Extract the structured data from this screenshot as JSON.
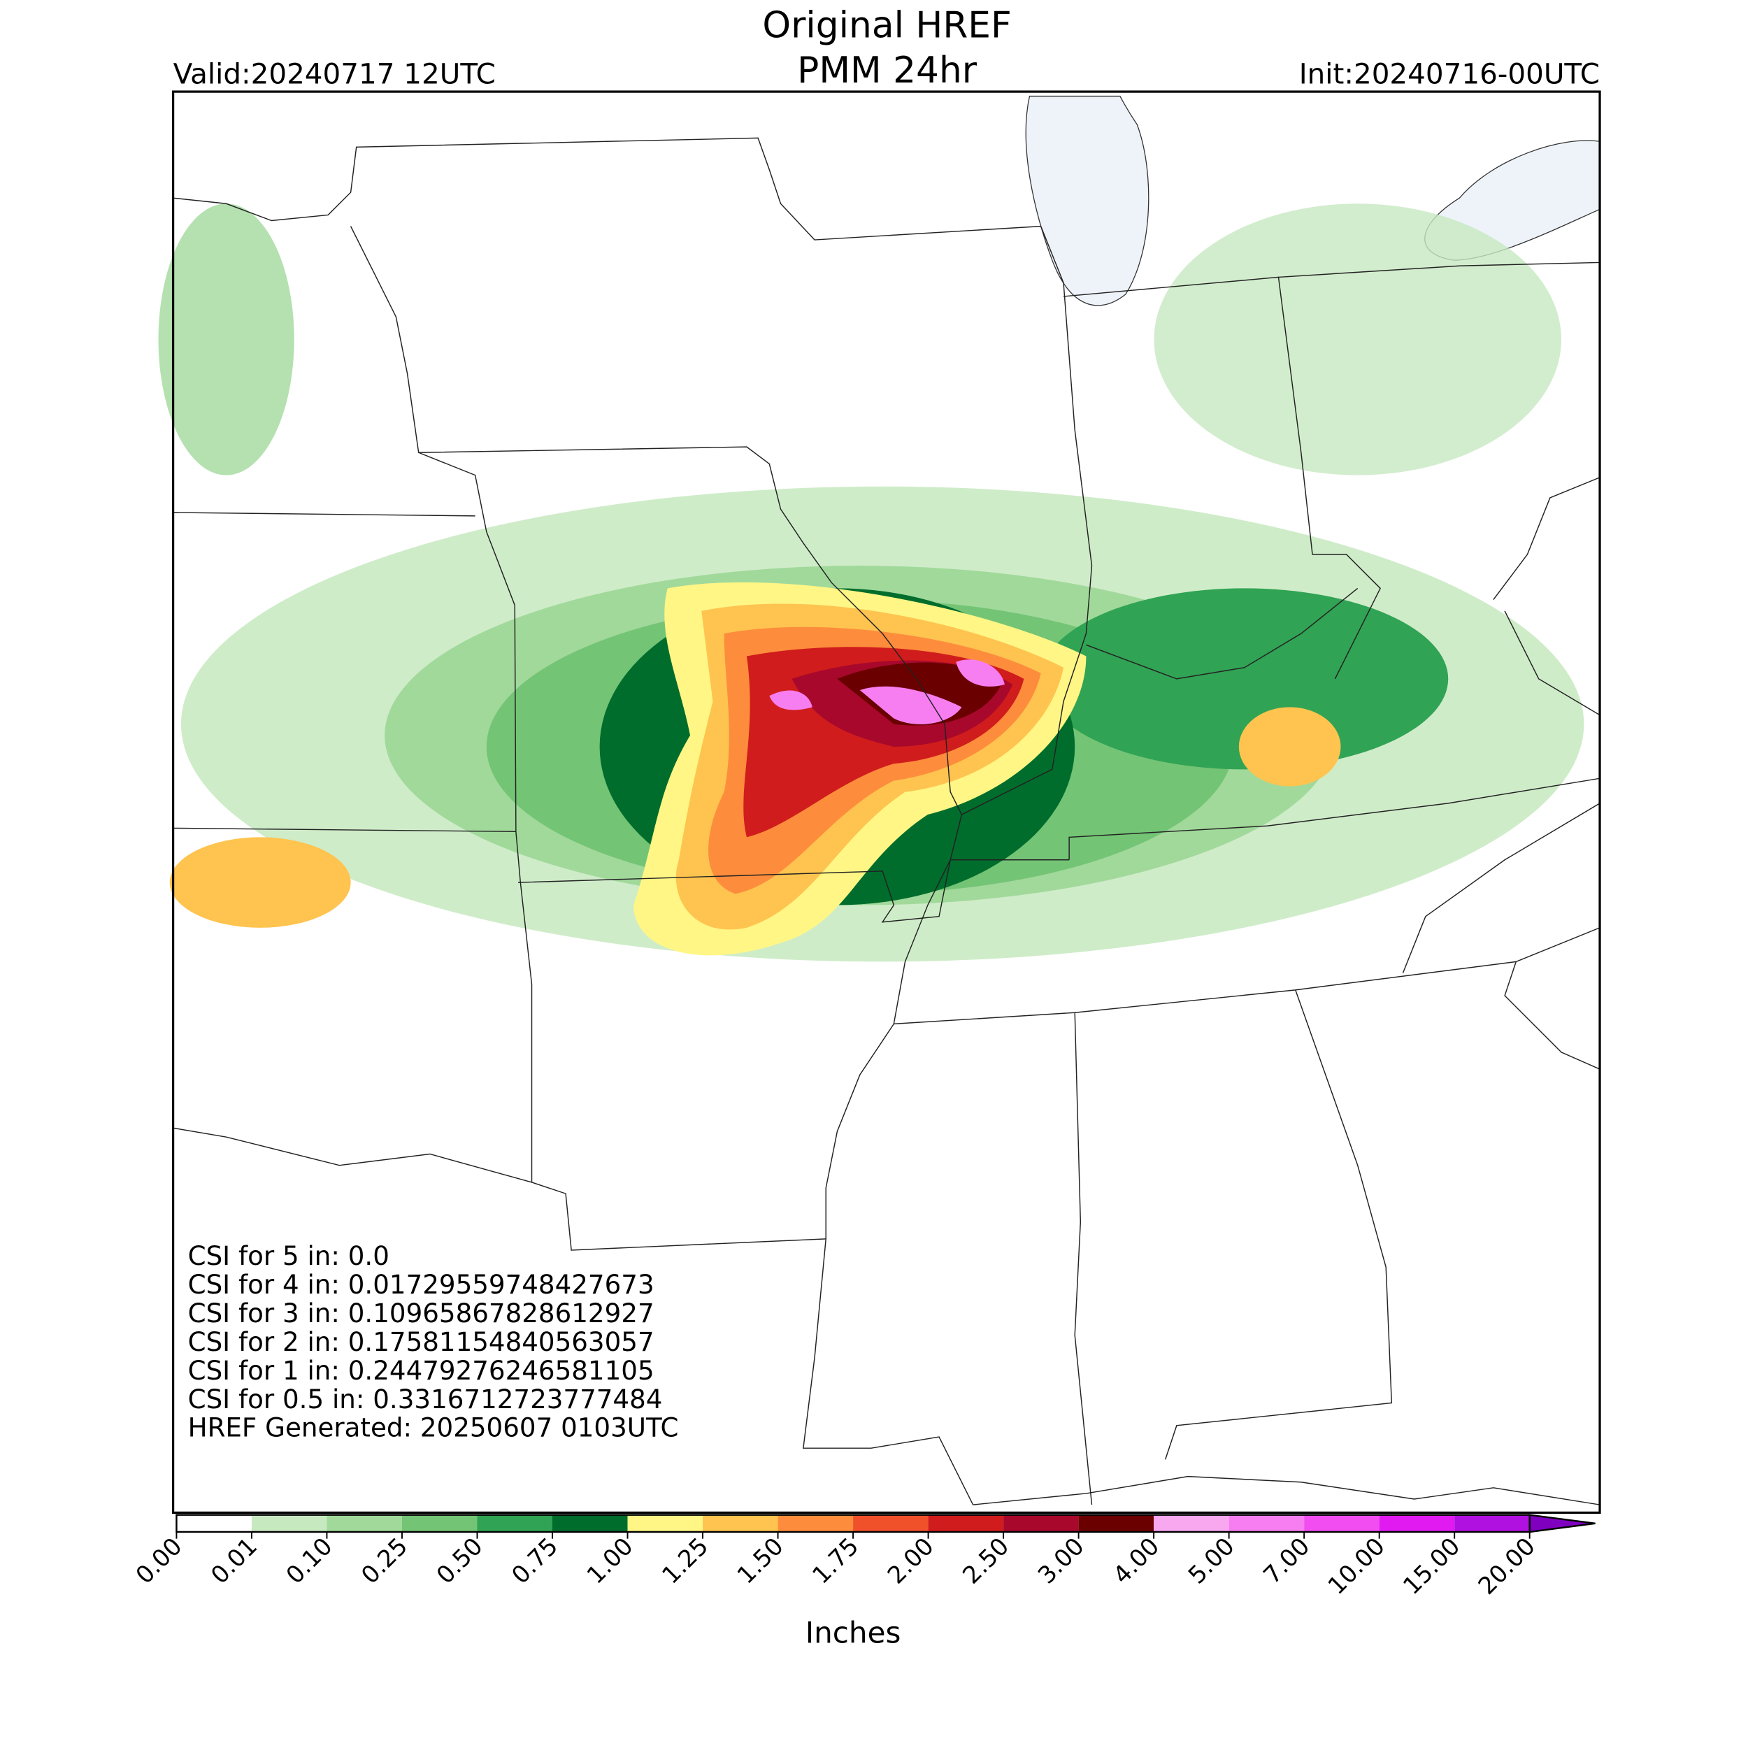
{
  "title": "Original HREF",
  "subtitle": "PMM 24hr",
  "valid": "Valid:20240717 12UTC",
  "init": "Init:20240716-00UTC",
  "stats": [
    "CSI for 5 in: 0.0",
    "CSI for 4 in: 0.01729559748427673",
    "CSI for 3 in: 0.10965867828612927",
    "CSI for 2 in: 0.17581154840563057",
    "CSI for 1 in: 0.24479276246581105",
    "CSI for 0.5 in: 0.3316712723777484",
    "HREF Generated: 20250607 0103UTC"
  ],
  "colorbar": {
    "label": "Inches",
    "ticks": [
      {
        "value": 0,
        "label": "0.00"
      },
      {
        "value": 0.01,
        "label": "0.01"
      },
      {
        "value": 0.1,
        "label": "0.10"
      },
      {
        "value": 0.25,
        "label": "0.25"
      },
      {
        "value": 0.5,
        "label": "0.50"
      },
      {
        "value": 0.75,
        "label": "0.75"
      },
      {
        "value": 1,
        "label": "1.00"
      },
      {
        "value": 1.25,
        "label": "1.25"
      },
      {
        "value": 1.5,
        "label": "1.50"
      },
      {
        "value": 1.75,
        "label": "1.75"
      },
      {
        "value": 2,
        "label": "2.00"
      },
      {
        "value": 2.5,
        "label": "2.50"
      },
      {
        "value": 3,
        "label": "3.00"
      },
      {
        "value": 4,
        "label": "4.00"
      },
      {
        "value": 5,
        "label": "5.00"
      },
      {
        "value": 7,
        "label": "7.00"
      },
      {
        "value": 10,
        "label": "10.00"
      },
      {
        "value": 15,
        "label": "15.00"
      },
      {
        "value": 20,
        "label": "20.00"
      }
    ],
    "colors": [
      "#ffffff",
      "#c7e9c0",
      "#a1d99b",
      "#74c476",
      "#31a354",
      "#006d2c",
      "#fff685",
      "#fec44f",
      "#fd8d3c",
      "#f0502a",
      "#d01c1c",
      "#a8082c",
      "#6b0000",
      "#f7a8ef",
      "#f77ef0",
      "#f24df0",
      "#e01af0",
      "#b010e0"
    ],
    "extend_color": "#8000c0"
  }
}
